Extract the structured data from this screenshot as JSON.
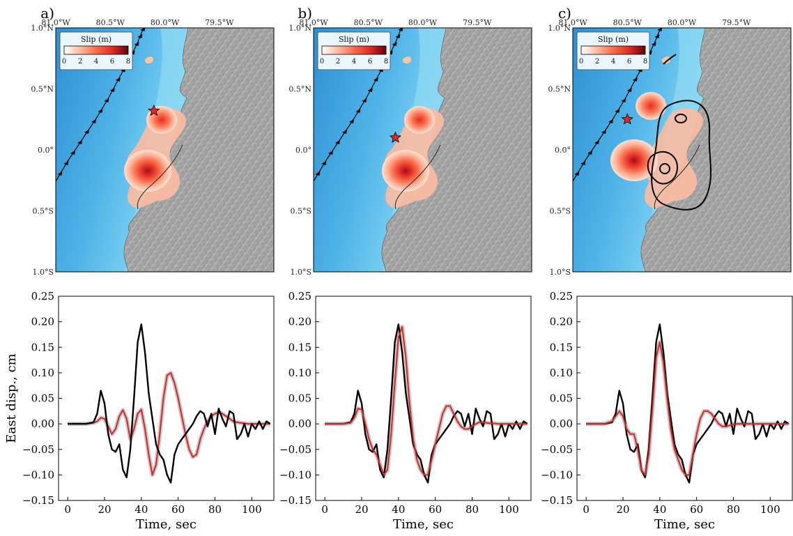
{
  "panels": [
    {
      "label": "a)",
      "hypocenter": [
        -80.1,
        0.32
      ]
    },
    {
      "label": "b)",
      "hypocenter": [
        -80.25,
        0.1
      ]
    },
    {
      "label": "c)",
      "hypocenter": [
        -80.5,
        0.25
      ]
    }
  ],
  "map": {
    "lon_labels": [
      "81.0°W",
      "80.5°W",
      "80.0°W",
      "79.5°W"
    ],
    "lat_labels": [
      "1.0°N",
      "0.5°N",
      "0.0°",
      "0.5°S",
      "1.0°S"
    ],
    "legend": {
      "title": "Slip (m)",
      "ticks": [
        "0",
        "2",
        "4",
        "6",
        "8"
      ],
      "colors": [
        "#fff5f0",
        "#fcbba1",
        "#fb6a4a",
        "#de2d26",
        "#a50f15"
      ]
    },
    "colors": {
      "ocean_deep": "#2f8fd0",
      "ocean_shallow": "#8fdcf4",
      "land": "#a9a9a9",
      "star": "#e8262a",
      "trench": "#000000"
    }
  },
  "chart_data": [
    {
      "type": "line",
      "xlabel": "Time, sec",
      "ylabel": "East disp., cm",
      "xlim": [
        -5,
        112
      ],
      "ylim": [
        -0.15,
        0.25
      ],
      "xticks": [
        "0",
        "20",
        "40",
        "60",
        "80",
        "100"
      ],
      "yticks": [
        "0.25",
        "0.20",
        "0.15",
        "0.10",
        "0.05",
        "0.00",
        "−0.05",
        "−0.10",
        "−0.15"
      ],
      "series": [
        {
          "color": "#000000",
          "x": [
            0,
            10,
            14,
            16,
            18,
            20,
            22,
            24,
            26,
            28,
            30,
            32,
            34,
            36,
            38,
            40,
            42,
            44,
            46,
            48,
            50,
            52,
            54,
            56,
            58,
            60,
            62,
            64,
            66,
            68,
            70,
            72,
            74,
            76,
            78,
            80,
            82,
            84,
            86,
            88,
            90,
            92,
            94,
            96,
            98,
            100,
            102,
            104,
            106,
            108,
            110
          ],
          "y": [
            0,
            0,
            0.003,
            0.02,
            0.065,
            0.04,
            -0.02,
            -0.05,
            -0.055,
            -0.04,
            -0.09,
            -0.105,
            -0.05,
            0.05,
            0.16,
            0.195,
            0.14,
            0.06,
            0.01,
            -0.04,
            -0.06,
            -0.07,
            -0.1,
            -0.115,
            -0.06,
            -0.04,
            -0.03,
            -0.02,
            -0.01,
            0.0,
            0.015,
            0.025,
            0.02,
            -0.005,
            0.02,
            -0.02,
            0.03,
            0.01,
            -0.005,
            0.025,
            0.02,
            -0.03,
            -0.02,
            0.0,
            -0.025,
            0.0,
            -0.01,
            0.005,
            -0.01,
            0.005,
            0.0
          ]
        },
        {
          "color": "#d62728",
          "x": [
            0,
            10,
            14,
            16,
            18,
            20,
            22,
            24,
            26,
            28,
            30,
            32,
            34,
            36,
            38,
            40,
            42,
            44,
            46,
            48,
            50,
            52,
            54,
            56,
            58,
            60,
            62,
            64,
            66,
            68,
            70,
            72,
            74,
            76,
            78,
            80,
            82,
            84,
            86,
            88,
            90,
            92,
            94,
            96,
            98,
            100,
            102,
            104,
            106,
            108,
            110
          ],
          "y": [
            0,
            0,
            0.002,
            0.005,
            0.012,
            0.01,
            -0.005,
            -0.02,
            -0.01,
            0.015,
            0.027,
            0.01,
            -0.03,
            -0.01,
            0.02,
            0.028,
            -0.01,
            -0.06,
            -0.1,
            -0.08,
            -0.02,
            0.05,
            0.095,
            0.1,
            0.08,
            0.05,
            0.015,
            -0.02,
            -0.05,
            -0.065,
            -0.06,
            -0.03,
            -0.01,
            0.005,
            0.015,
            0.02,
            0.022,
            0.02,
            0.015,
            0.01,
            0.005,
            0.003,
            0.002,
            0.001,
            0,
            0,
            0,
            0,
            0,
            0,
            0
          ]
        }
      ]
    },
    {
      "type": "line",
      "xlabel": "Time, sec",
      "ylabel": "",
      "xlim": [
        -5,
        112
      ],
      "ylim": [
        -0.15,
        0.25
      ],
      "xticks": [
        "0",
        "20",
        "40",
        "60",
        "80",
        "100"
      ],
      "yticks": [
        "0.25",
        "0.20",
        "0.15",
        "0.10",
        "0.05",
        "0.00",
        "−0.05",
        "−0.10",
        "−0.15"
      ],
      "series": [
        {
          "color": "#000000",
          "x": [
            0,
            10,
            14,
            16,
            18,
            20,
            22,
            24,
            26,
            28,
            30,
            32,
            34,
            36,
            38,
            40,
            42,
            44,
            46,
            48,
            50,
            52,
            54,
            56,
            58,
            60,
            62,
            64,
            66,
            68,
            70,
            72,
            74,
            76,
            78,
            80,
            82,
            84,
            86,
            88,
            90,
            92,
            94,
            96,
            98,
            100,
            102,
            104,
            106,
            108,
            110
          ],
          "y": [
            0,
            0,
            0.003,
            0.02,
            0.065,
            0.04,
            -0.02,
            -0.05,
            -0.055,
            -0.04,
            -0.09,
            -0.105,
            -0.05,
            0.05,
            0.16,
            0.195,
            0.14,
            0.06,
            0.01,
            -0.04,
            -0.06,
            -0.07,
            -0.1,
            -0.115,
            -0.06,
            -0.04,
            -0.03,
            -0.02,
            -0.01,
            0.0,
            0.015,
            0.025,
            0.02,
            -0.005,
            0.02,
            -0.02,
            0.03,
            0.01,
            -0.005,
            0.025,
            0.02,
            -0.03,
            -0.02,
            0.0,
            -0.025,
            0.0,
            -0.01,
            0.005,
            -0.01,
            0.005,
            0.0
          ]
        },
        {
          "color": "#d62728",
          "x": [
            0,
            10,
            14,
            16,
            18,
            20,
            22,
            24,
            26,
            28,
            30,
            32,
            34,
            36,
            38,
            40,
            42,
            44,
            46,
            48,
            50,
            52,
            54,
            56,
            58,
            60,
            62,
            64,
            66,
            68,
            70,
            72,
            74,
            76,
            78,
            80,
            82,
            84,
            86,
            88,
            90,
            92,
            94,
            96,
            98,
            100,
            102,
            104,
            106,
            108,
            110
          ],
          "y": [
            0,
            0,
            0.002,
            0.012,
            0.03,
            0.028,
            0.0,
            -0.03,
            -0.05,
            -0.06,
            -0.08,
            -0.1,
            -0.09,
            -0.02,
            0.08,
            0.17,
            0.19,
            0.13,
            0.04,
            -0.03,
            -0.07,
            -0.09,
            -0.1,
            -0.1,
            -0.07,
            -0.04,
            -0.01,
            0.02,
            0.035,
            0.035,
            0.02,
            0.005,
            -0.005,
            -0.01,
            -0.01,
            -0.005,
            0.0,
            0.003,
            0.003,
            0.002,
            0.001,
            0.001,
            0.0,
            0,
            0,
            0,
            0,
            0,
            0,
            0,
            0
          ]
        }
      ]
    },
    {
      "type": "line",
      "xlabel": "Time, sec",
      "ylabel": "",
      "xlim": [
        -5,
        112
      ],
      "ylim": [
        -0.15,
        0.25
      ],
      "xticks": [
        "0",
        "20",
        "40",
        "60",
        "80",
        "100"
      ],
      "yticks": [
        "0.25",
        "0.20",
        "0.15",
        "0.10",
        "0.05",
        "0.00",
        "−0.05",
        "−0.10",
        "−0.15"
      ],
      "series": [
        {
          "color": "#000000",
          "x": [
            0,
            10,
            14,
            16,
            18,
            20,
            22,
            24,
            26,
            28,
            30,
            32,
            34,
            36,
            38,
            40,
            42,
            44,
            46,
            48,
            50,
            52,
            54,
            56,
            58,
            60,
            62,
            64,
            66,
            68,
            70,
            72,
            74,
            76,
            78,
            80,
            82,
            84,
            86,
            88,
            90,
            92,
            94,
            96,
            98,
            100,
            102,
            104,
            106,
            108,
            110
          ],
          "y": [
            0,
            0,
            0.003,
            0.02,
            0.065,
            0.04,
            -0.02,
            -0.05,
            -0.055,
            -0.04,
            -0.09,
            -0.105,
            -0.05,
            0.05,
            0.16,
            0.195,
            0.14,
            0.06,
            0.01,
            -0.04,
            -0.06,
            -0.07,
            -0.1,
            -0.115,
            -0.06,
            -0.04,
            -0.03,
            -0.02,
            -0.01,
            0.0,
            0.015,
            0.025,
            0.02,
            -0.005,
            0.02,
            -0.02,
            0.03,
            0.01,
            -0.005,
            0.025,
            0.02,
            -0.03,
            -0.02,
            0.0,
            -0.025,
            0.0,
            -0.01,
            0.005,
            -0.01,
            0.005,
            0.0
          ]
        },
        {
          "color": "#d62728",
          "x": [
            0,
            10,
            14,
            16,
            18,
            20,
            22,
            24,
            26,
            28,
            30,
            32,
            34,
            36,
            38,
            40,
            42,
            44,
            46,
            48,
            50,
            52,
            54,
            56,
            58,
            60,
            62,
            64,
            66,
            68,
            70,
            72,
            74,
            76,
            78,
            80,
            82,
            84,
            86,
            88,
            90,
            92,
            94,
            96,
            98,
            100,
            102,
            104,
            106,
            108,
            110
          ],
          "y": [
            0,
            0,
            0.005,
            0.015,
            0.025,
            0.015,
            -0.01,
            -0.02,
            -0.02,
            -0.05,
            -0.09,
            -0.1,
            -0.06,
            0.03,
            0.13,
            0.16,
            0.12,
            0.05,
            -0.01,
            -0.05,
            -0.07,
            -0.09,
            -0.1,
            -0.1,
            -0.06,
            -0.02,
            0.01,
            0.025,
            0.025,
            0.02,
            0.01,
            0.0,
            -0.005,
            -0.005,
            -0.003,
            -0.001,
            0.0,
            0.0,
            0.0,
            0,
            0,
            0,
            0,
            0,
            0,
            0,
            0,
            0,
            0,
            0,
            0
          ]
        }
      ]
    }
  ]
}
